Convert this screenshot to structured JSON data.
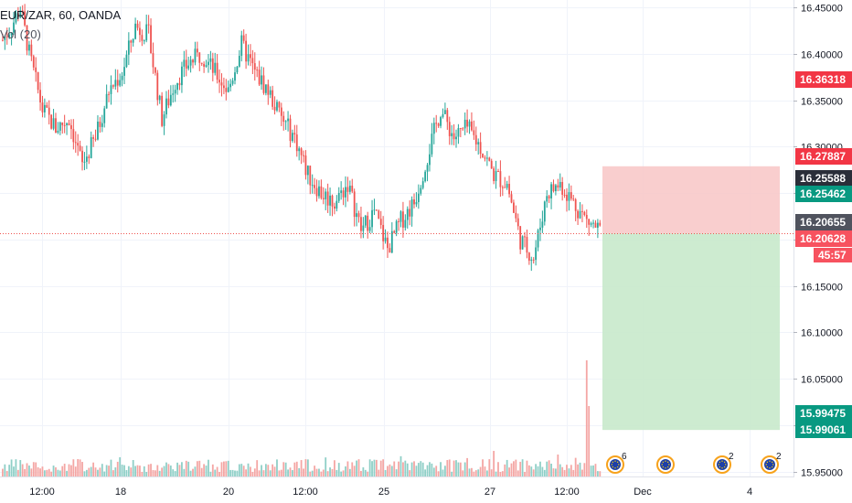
{
  "legend": {
    "symbol_line": "EUR/ZAR, 60, OANDA",
    "indicator_line": "Vol (20)"
  },
  "chart_data": {
    "type": "candlestick",
    "title": "EUR/ZAR, 60, OANDA",
    "indicator": "Vol (20)",
    "ylim": [
      15.92,
      16.46
    ],
    "y_ticks": [
      "16.45000",
      "16.40000",
      "16.35000",
      "16.30000",
      "16.25000",
      "16.20000",
      "16.15000",
      "16.10000",
      "16.05000",
      "16.00000",
      "15.95000"
    ],
    "x_ticks": [
      "12:00",
      "18",
      "20",
      "12:00",
      "25",
      "27",
      "12:00",
      "Dec",
      "4"
    ],
    "grid": true,
    "colors": {
      "up": "#26a69a",
      "down": "#ef5350",
      "up_volume": "#8fcfc7",
      "down_volume": "#f4a6a4",
      "stop_zone": "#f8c6c5",
      "target_zone": "#c8e9cb",
      "current_line": "#ef5350"
    },
    "price_path": [
      [
        0,
        16.415
      ],
      [
        4,
        16.43
      ],
      [
        8,
        16.45
      ],
      [
        12,
        16.4
      ],
      [
        18,
        16.34
      ],
      [
        24,
        16.32
      ],
      [
        30,
        16.33
      ],
      [
        36,
        16.28
      ],
      [
        42,
        16.31
      ],
      [
        48,
        16.36
      ],
      [
        54,
        16.38
      ],
      [
        60,
        16.43
      ],
      [
        66,
        16.42
      ],
      [
        72,
        16.33
      ],
      [
        78,
        16.37
      ],
      [
        84,
        16.39
      ],
      [
        90,
        16.4
      ],
      [
        96,
        16.38
      ],
      [
        102,
        16.36
      ],
      [
        108,
        16.41
      ],
      [
        114,
        16.38
      ],
      [
        120,
        16.36
      ],
      [
        126,
        16.33
      ],
      [
        132,
        16.31
      ],
      [
        138,
        16.27
      ],
      [
        144,
        16.25
      ],
      [
        150,
        16.24
      ],
      [
        156,
        16.26
      ],
      [
        162,
        16.21
      ],
      [
        168,
        16.23
      ],
      [
        174,
        16.19
      ],
      [
        180,
        16.22
      ],
      [
        186,
        16.24
      ],
      [
        192,
        16.29
      ],
      [
        198,
        16.34
      ],
      [
        204,
        16.31
      ],
      [
        210,
        16.32
      ],
      [
        216,
        16.3
      ],
      [
        222,
        16.27
      ],
      [
        228,
        16.26
      ],
      [
        234,
        16.2
      ],
      [
        240,
        16.18
      ],
      [
        246,
        16.25
      ],
      [
        252,
        16.26
      ],
      [
        258,
        16.24
      ],
      [
        264,
        16.22
      ],
      [
        270,
        16.21
      ]
    ],
    "price_levels": [
      {
        "label": "16.36318",
        "value": 16.36318,
        "color": "#f23645"
      },
      {
        "label": "16.27887",
        "value": 16.27887,
        "color": "#f23645"
      },
      {
        "label": "16.25588",
        "value": 16.25588,
        "color": "#2a2e39"
      },
      {
        "label": "16.25462",
        "value": 16.25462,
        "color": "#089981"
      },
      {
        "label": "16.20655",
        "value": 16.20655,
        "color": "#50535e"
      },
      {
        "label": "16.20628",
        "value": 16.20628,
        "color": "#f7525f"
      },
      {
        "label": "45:57",
        "value": 16.188,
        "color": "#f7525f"
      },
      {
        "label": "15.99475",
        "value": 15.99475,
        "color": "#089981"
      },
      {
        "label": "15.99061",
        "value": 15.99061,
        "color": "#089981"
      }
    ],
    "position": {
      "entry": 16.20655,
      "stop": 16.27887,
      "target": 15.99475
    },
    "events": [
      {
        "icon": "eu-flag-icon",
        "count": "6"
      },
      {
        "icon": "eu-flag-icon",
        "count": ""
      },
      {
        "icon": "eu-flag-icon",
        "count": "2"
      },
      {
        "icon": "eu-flag-icon",
        "count": "2"
      }
    ]
  }
}
